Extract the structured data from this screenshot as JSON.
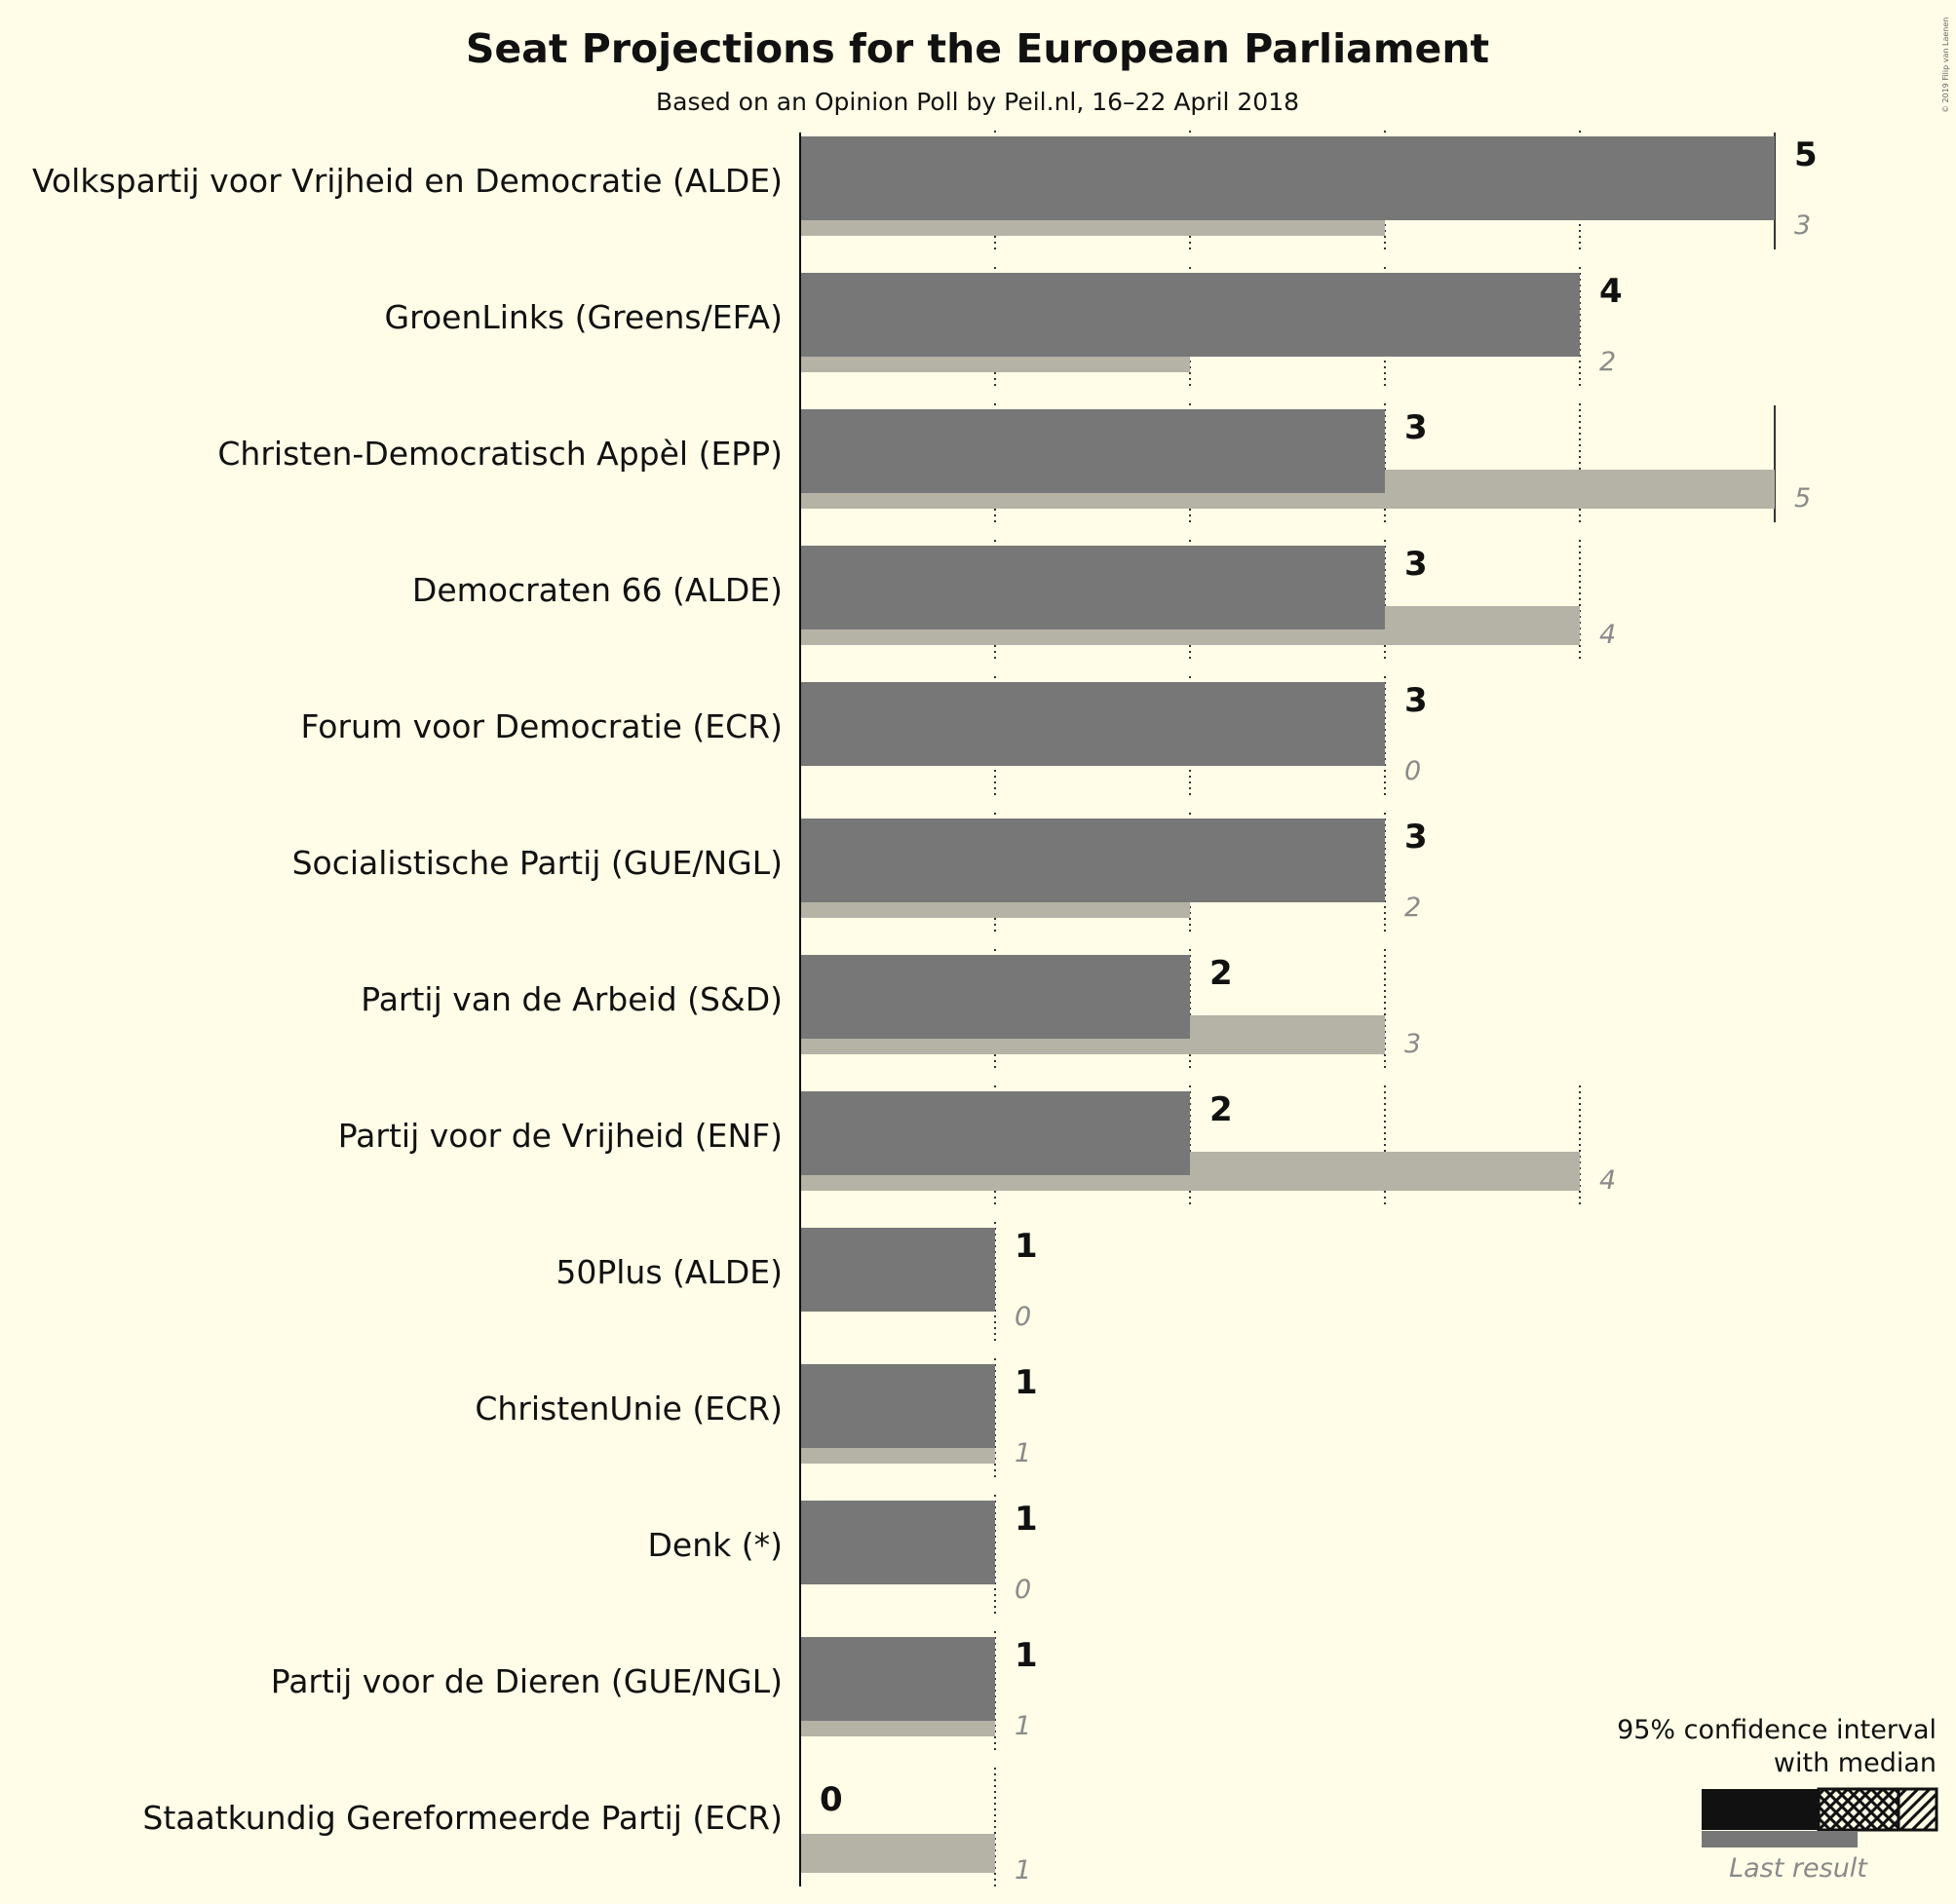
{
  "colors": {
    "background": "#FFFDE7",
    "projection_bar": "#777777",
    "last_result_bar": "#B5B3A6",
    "legend_dark": "#111111"
  },
  "chart_data": {
    "type": "bar",
    "orientation": "horizontal",
    "title": "Seat Projections for the European Parliament",
    "subtitle": "Based on an Opinion Poll by Peil.nl, 16–22 April 2018",
    "copyright": "© 2019 Filip van Laenen",
    "xlim": [
      0,
      5
    ],
    "grid": true,
    "categories": [
      "Volkspartij voor Vrijheid en Democratie (ALDE)",
      "GroenLinks (Greens/EFA)",
      "Christen-Democratisch Appèl (EPP)",
      "Democraten 66 (ALDE)",
      "Forum voor Democratie (ECR)",
      "Socialistische Partij (GUE/NGL)",
      "Partij van de Arbeid (S&D)",
      "Partij voor de Vrijheid (ENF)",
      "50Plus (ALDE)",
      "ChristenUnie (ECR)",
      "Denk (*)",
      "Partij voor de Dieren (GUE/NGL)",
      "Staatkundig Gereformeerde Partij (ECR)"
    ],
    "series": [
      {
        "name": "95% confidence interval with median",
        "values": [
          5,
          4,
          3,
          3,
          3,
          3,
          2,
          2,
          1,
          1,
          1,
          1,
          0
        ]
      },
      {
        "name": "Last result",
        "values": [
          3,
          2,
          5,
          4,
          0,
          2,
          3,
          4,
          0,
          1,
          0,
          1,
          1
        ]
      }
    ],
    "legend": {
      "position": "bottom-right",
      "line1": "95% confidence interval",
      "line2": "with median",
      "last_result": "Last result"
    }
  }
}
